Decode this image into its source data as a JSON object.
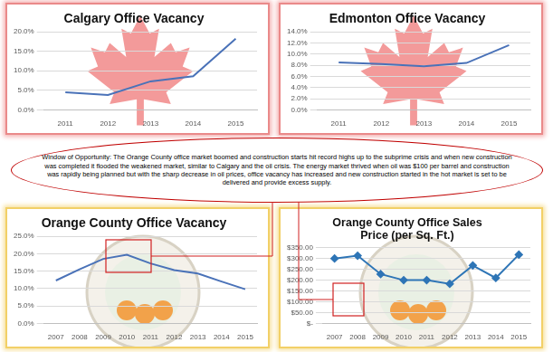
{
  "annotation": "Window of Opportunity: The Orange County office market boomed and construction starts hit record highs up to the subprime crisis and when new construction was completed it flooded the weakened market, similar to Calgary and the oil crisis. The energy market thrived when oil was $100 per barrel and construction was rapidly being planned but with the sharp decrease in oil prices, office vacancy has increased and new construction started in the hot market is set to be delivered and provide excess supply.",
  "chart_data": [
    {
      "type": "line",
      "title": "Calgary Office Vacancy",
      "categories": [
        "2011",
        "2012",
        "2013",
        "2014",
        "2015"
      ],
      "values": [
        4.5,
        3.8,
        7.3,
        8.6,
        18.2
      ],
      "color": "#4a72b8",
      "marker": "none",
      "ylim": [
        0,
        20
      ],
      "yticks": [
        {
          "value": 0,
          "label": "0.0%"
        },
        {
          "value": 5,
          "label": "5.0%"
        },
        {
          "value": 10,
          "label": "10.0%"
        },
        {
          "value": 15,
          "label": "15.0%"
        },
        {
          "value": 20,
          "label": "20.0%"
        }
      ],
      "grid": true
    },
    {
      "type": "line",
      "title": "Edmonton Office Vacancy",
      "categories": [
        "2011",
        "2012",
        "2013",
        "2014",
        "2015"
      ],
      "values": [
        8.5,
        8.2,
        7.8,
        8.4,
        11.6
      ],
      "color": "#4a72b8",
      "marker": "none",
      "ylim": [
        0,
        14
      ],
      "yticks": [
        {
          "value": 0,
          "label": "0.0%"
        },
        {
          "value": 2,
          "label": "2.0%"
        },
        {
          "value": 4,
          "label": "4.0%"
        },
        {
          "value": 6,
          "label": "6.0%"
        },
        {
          "value": 8,
          "label": "8.0%"
        },
        {
          "value": 10,
          "label": "10.0%"
        },
        {
          "value": 12,
          "label": "12.0%"
        },
        {
          "value": 14,
          "label": "14.0%"
        }
      ],
      "grid": true
    },
    {
      "type": "line",
      "title": "Orange County Office Vacancy",
      "categories": [
        "2007",
        "2008",
        "2009",
        "2010",
        "2011",
        "2012",
        "2013",
        "2014",
        "2015"
      ],
      "values": [
        12.3,
        15.5,
        18.5,
        19.7,
        17.2,
        15.3,
        14.3,
        12.0,
        9.8
      ],
      "color": "#4a72b8",
      "marker": "none",
      "ylim": [
        0,
        25
      ],
      "yticks": [
        {
          "value": 0,
          "label": "0.0%"
        },
        {
          "value": 5,
          "label": "5.0%"
        },
        {
          "value": 10,
          "label": "10.0%"
        },
        {
          "value": 15,
          "label": "15.0%"
        },
        {
          "value": 20,
          "label": "20.0%"
        },
        {
          "value": 25,
          "label": "25.0%"
        }
      ],
      "grid": true
    },
    {
      "type": "line",
      "title": [
        "Orange County Office Sales",
        "Price (per Sq. Ft.)"
      ],
      "categories": [
        "2007",
        "2008",
        "2009",
        "2010",
        "2011",
        "2012",
        "2013",
        "2014",
        "2015"
      ],
      "values": [
        300,
        313,
        228,
        200,
        200,
        183,
        268,
        210,
        318
      ],
      "color": "#2e75b6",
      "marker": "diamond",
      "ylim": [
        0,
        350
      ],
      "yticks": [
        {
          "value": 0,
          "label": "$-"
        },
        {
          "value": 50,
          "label": "$50.00"
        },
        {
          "value": 100,
          "label": "$100.00"
        },
        {
          "value": 150,
          "label": "$150.00"
        },
        {
          "value": 200,
          "label": "$200.00"
        },
        {
          "value": 250,
          "label": "$250.00"
        },
        {
          "value": 300,
          "label": "$300.00"
        },
        {
          "value": 350,
          "label": "$350.00"
        }
      ],
      "grid": true
    }
  ]
}
